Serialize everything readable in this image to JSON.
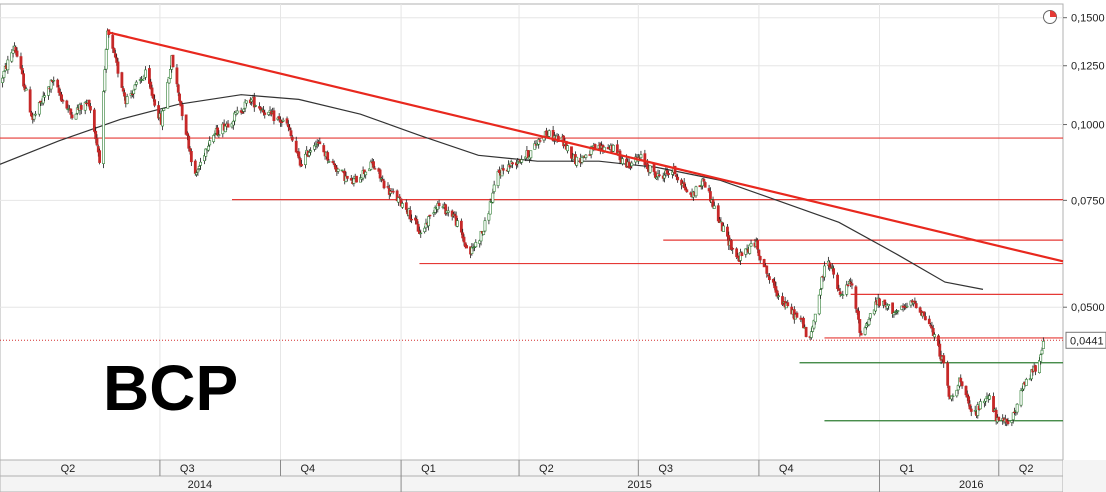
{
  "chart_data": {
    "type": "candlestick",
    "title": "BCP",
    "y_scale": "log",
    "ylim": [
      0.028,
      0.158
    ],
    "y_ticks": [
      {
        "value": 0.15,
        "label": "0,1500"
      },
      {
        "value": 0.125,
        "label": "0,1250"
      },
      {
        "value": 0.1,
        "label": "0,1000"
      },
      {
        "value": 0.075,
        "label": "0,0750"
      },
      {
        "value": 0.05,
        "label": "0,0500"
      }
    ],
    "last_price": {
      "value": 0.0441,
      "label": "0,0441"
    },
    "x_range": [
      "2014-03-01",
      "2016-05-20"
    ],
    "quarters": [
      {
        "label": "Q2",
        "start": "2014-04-01",
        "end": "2014-06-30"
      },
      {
        "label": "Q3",
        "start": "2014-07-01",
        "end": "2014-09-30"
      },
      {
        "label": "Q4",
        "start": "2014-10-01",
        "end": "2014-12-31"
      },
      {
        "label": "Q1",
        "start": "2015-01-01",
        "end": "2015-03-31"
      },
      {
        "label": "Q2",
        "start": "2015-04-01",
        "end": "2015-06-30"
      },
      {
        "label": "Q3",
        "start": "2015-07-01",
        "end": "2015-09-30"
      },
      {
        "label": "Q4",
        "start": "2015-10-01",
        "end": "2015-12-31"
      },
      {
        "label": "Q1",
        "start": "2016-01-01",
        "end": "2016-03-31"
      },
      {
        "label": "Q2",
        "start": "2016-04-01",
        "end": "2016-06-30"
      }
    ],
    "years": [
      {
        "label": "2014",
        "start": "2014-03-01",
        "end": "2014-12-31"
      },
      {
        "label": "2015",
        "start": "2015-01-01",
        "end": "2015-12-31"
      },
      {
        "label": "2016",
        "start": "2016-01-01",
        "end": "2016-05-20"
      }
    ],
    "price_path": [
      [
        "2014-03-01",
        0.117
      ],
      [
        "2014-03-12",
        0.135
      ],
      [
        "2014-03-26",
        0.102
      ],
      [
        "2014-04-10",
        0.118
      ],
      [
        "2014-04-24",
        0.104
      ],
      [
        "2014-05-08",
        0.109
      ],
      [
        "2014-05-16",
        0.088
      ],
      [
        "2014-05-22",
        0.142
      ],
      [
        "2014-06-05",
        0.11
      ],
      [
        "2014-06-20",
        0.121
      ],
      [
        "2014-07-02",
        0.101
      ],
      [
        "2014-07-10",
        0.128
      ],
      [
        "2014-07-22",
        0.095
      ],
      [
        "2014-07-28",
        0.082
      ],
      [
        "2014-08-08",
        0.095
      ],
      [
        "2014-08-25",
        0.102
      ],
      [
        "2014-09-08",
        0.11
      ],
      [
        "2014-09-22",
        0.104
      ],
      [
        "2014-10-06",
        0.1
      ],
      [
        "2014-10-16",
        0.086
      ],
      [
        "2014-10-28",
        0.094
      ],
      [
        "2014-11-10",
        0.086
      ],
      [
        "2014-11-24",
        0.08
      ],
      [
        "2014-12-10",
        0.086
      ],
      [
        "2014-12-22",
        0.078
      ],
      [
        "2015-01-05",
        0.073
      ],
      [
        "2015-01-16",
        0.066
      ],
      [
        "2015-01-28",
        0.074
      ],
      [
        "2015-02-10",
        0.071
      ],
      [
        "2015-02-22",
        0.061
      ],
      [
        "2015-03-05",
        0.067
      ],
      [
        "2015-03-16",
        0.083
      ],
      [
        "2015-03-26",
        0.086
      ],
      [
        "2015-04-10",
        0.09
      ],
      [
        "2015-04-20",
        0.097
      ],
      [
        "2015-05-04",
        0.094
      ],
      [
        "2015-05-15",
        0.087
      ],
      [
        "2015-05-28",
        0.091
      ],
      [
        "2015-06-10",
        0.092
      ],
      [
        "2015-06-22",
        0.086
      ],
      [
        "2015-07-03",
        0.088
      ],
      [
        "2015-07-15",
        0.082
      ],
      [
        "2015-07-28",
        0.084
      ],
      [
        "2015-08-10",
        0.076
      ],
      [
        "2015-08-20",
        0.081
      ],
      [
        "2015-09-01",
        0.069
      ],
      [
        "2015-09-15",
        0.06
      ],
      [
        "2015-09-28",
        0.064
      ],
      [
        "2015-10-10",
        0.055
      ],
      [
        "2015-10-22",
        0.05
      ],
      [
        "2015-11-04",
        0.047
      ],
      [
        "2015-11-08",
        0.043
      ],
      [
        "2015-11-22",
        0.061
      ],
      [
        "2015-12-02",
        0.052
      ],
      [
        "2015-12-10",
        0.055
      ],
      [
        "2015-12-18",
        0.045
      ],
      [
        "2015-12-30",
        0.051
      ],
      [
        "2016-01-15",
        0.049
      ],
      [
        "2016-01-28",
        0.051
      ],
      [
        "2016-02-08",
        0.047
      ],
      [
        "2016-02-18",
        0.041
      ],
      [
        "2016-02-24",
        0.035
      ],
      [
        "2016-03-02",
        0.038
      ],
      [
        "2016-03-12",
        0.033
      ],
      [
        "2016-03-24",
        0.036
      ],
      [
        "2016-04-01",
        0.032
      ],
      [
        "2016-04-12",
        0.033
      ],
      [
        "2016-04-22",
        0.038
      ],
      [
        "2016-04-30",
        0.04
      ],
      [
        "2016-05-05",
        0.044
      ]
    ],
    "moving_average": [
      [
        "2014-03-01",
        0.086
      ],
      [
        "2014-04-15",
        0.094
      ],
      [
        "2014-06-01",
        0.102
      ],
      [
        "2014-07-15",
        0.108
      ],
      [
        "2014-09-01",
        0.112
      ],
      [
        "2014-10-15",
        0.11
      ],
      [
        "2014-12-01",
        0.104
      ],
      [
        "2015-01-15",
        0.096
      ],
      [
        "2015-03-01",
        0.089
      ],
      [
        "2015-04-15",
        0.087
      ],
      [
        "2015-06-01",
        0.087
      ],
      [
        "2015-07-15",
        0.085
      ],
      [
        "2015-09-01",
        0.081
      ],
      [
        "2015-10-15",
        0.075
      ],
      [
        "2015-12-01",
        0.069
      ],
      [
        "2016-01-15",
        0.061
      ],
      [
        "2016-02-20",
        0.055
      ],
      [
        "2016-03-20",
        0.0535
      ]
    ],
    "trendline": {
      "start": [
        "2014-05-22",
        0.142
      ],
      "end": [
        "2016-05-20",
        0.0595
      ],
      "color": "#e8281e"
    },
    "support_resistance": [
      {
        "value": 0.095,
        "from": "2014-03-01",
        "to": "2016-05-20"
      },
      {
        "value": 0.0752,
        "from": "2014-08-25",
        "to": "2016-05-20"
      },
      {
        "value": 0.0645,
        "from": "2015-07-20",
        "to": "2016-05-20"
      },
      {
        "value": 0.059,
        "from": "2015-01-15",
        "to": "2016-05-20"
      },
      {
        "value": 0.0525,
        "from": "2015-12-10",
        "to": "2016-05-20"
      },
      {
        "value": 0.0445,
        "from": "2015-11-20",
        "to": "2016-05-20"
      }
    ],
    "green_levels": [
      {
        "value": 0.0405,
        "from": "2015-11-01",
        "to": "2016-05-20"
      },
      {
        "value": 0.0325,
        "from": "2015-11-20",
        "to": "2016-05-20"
      }
    ],
    "grid": true,
    "colors": {
      "up_candle": "#2e7d32",
      "down_candle": "#c62828",
      "trendline": "#e8281e",
      "support": "#e53935",
      "green_level": "#2e7d32",
      "moving_average": "#333333",
      "last_price_dotted": "#d32f2f"
    }
  }
}
